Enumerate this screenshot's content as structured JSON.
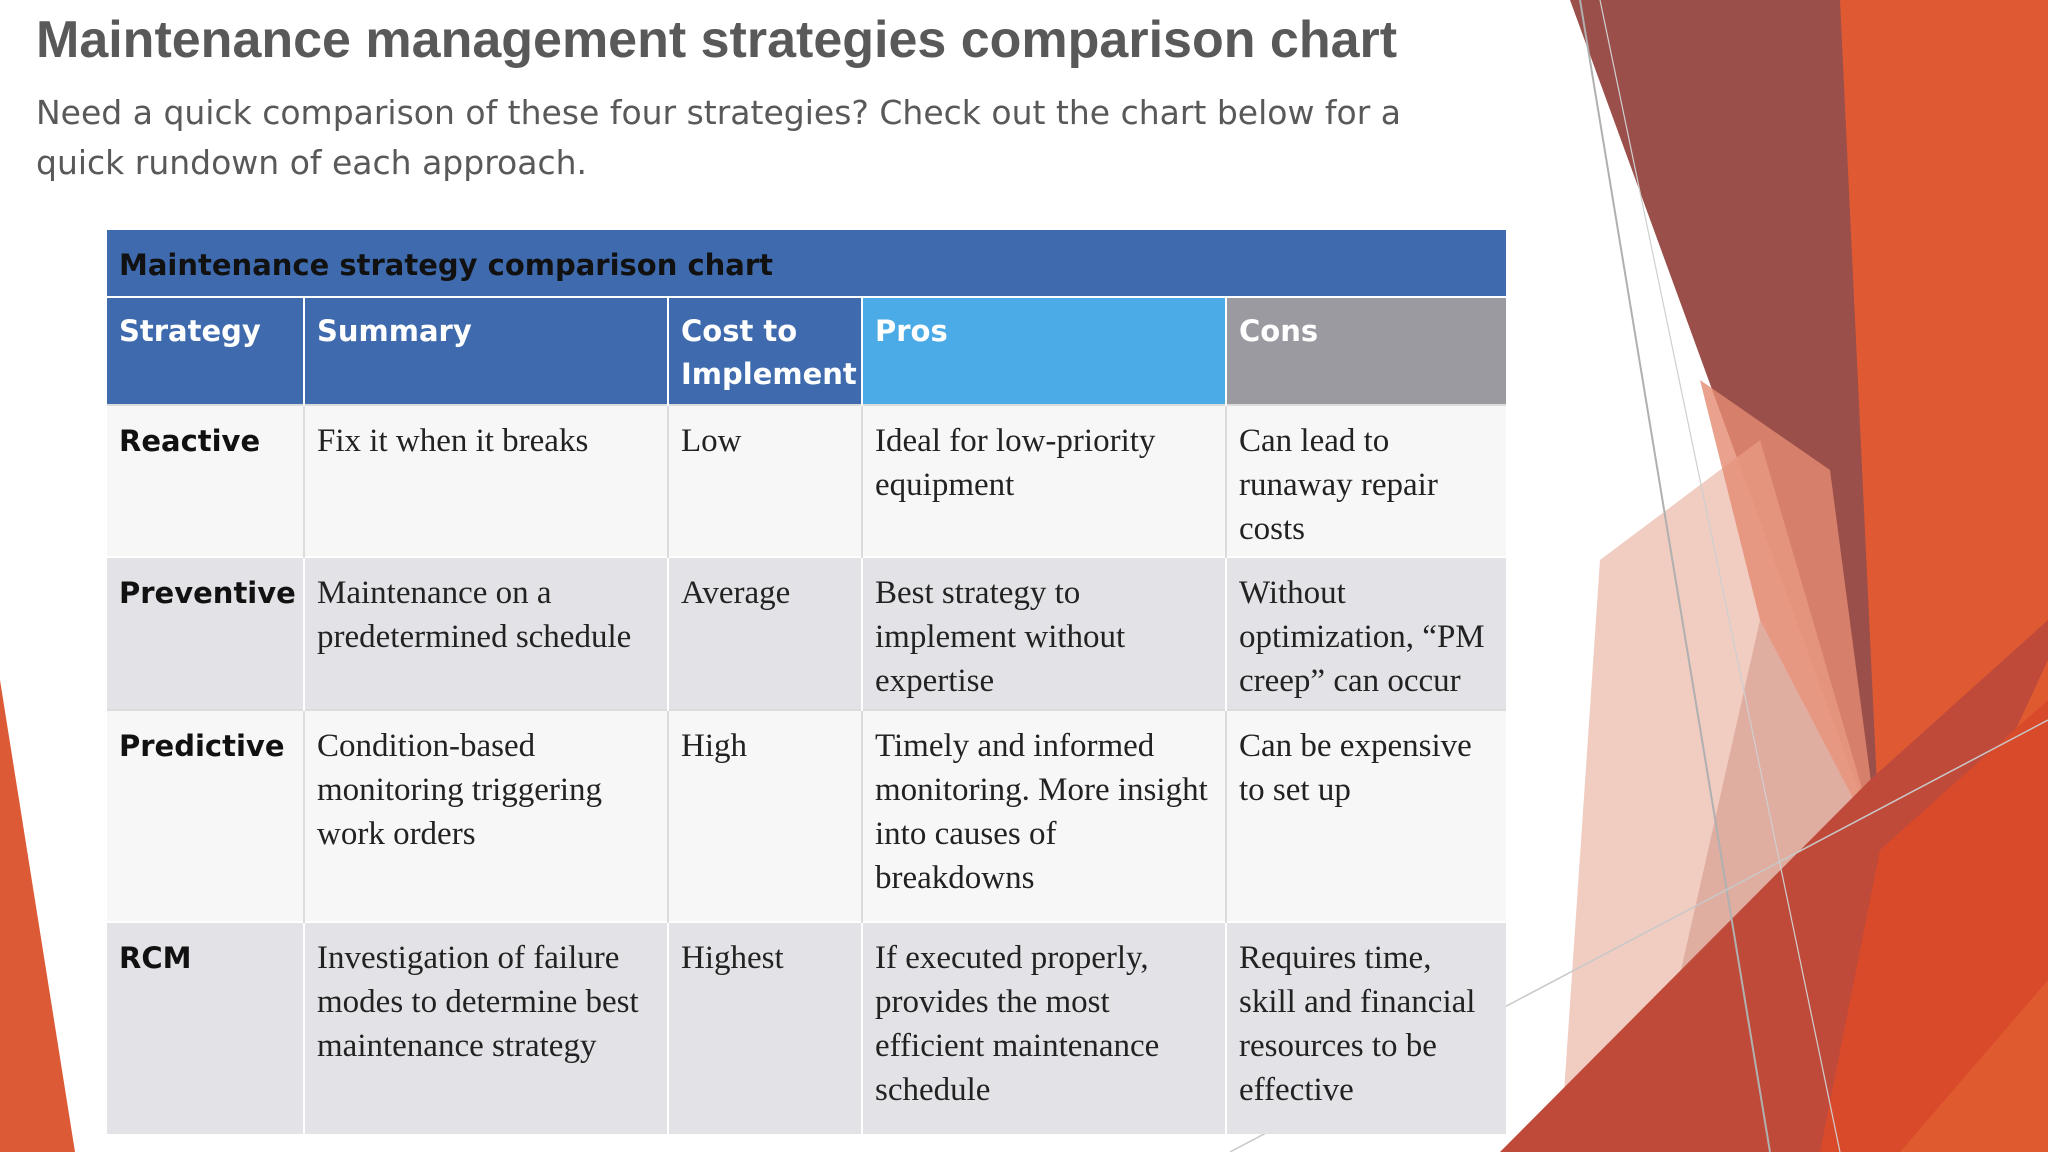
{
  "page": {
    "title": "Maintenance management strategies comparison chart",
    "subtitle": "Need a quick comparison of these four strategies? Check out the chart below for a quick rundown of each approach."
  },
  "table": {
    "caption": "Maintenance strategy comparison chart",
    "headers": [
      "Strategy",
      "Summary",
      "Cost to Implement",
      "Pros",
      "Cons"
    ],
    "rows": [
      {
        "strategy": "Reactive",
        "summary": "Fix it when it breaks",
        "cost": "Low",
        "pros": "Ideal for low-priority equipment",
        "cons": "Can lead to runaway repair costs"
      },
      {
        "strategy": "Preventive",
        "summary": "Maintenance on a predetermined schedule",
        "cost": "Average",
        "pros": "Best strategy to implement without expertise",
        "cons": "Without optimization, “PM creep” can occur"
      },
      {
        "strategy": "Predictive",
        "summary": "Condition-based monitoring triggering work orders",
        "cost": "High",
        "pros": "Timely and informed monitoring. More insight into causes of breakdowns",
        "cons": "Can be expensive to set up"
      },
      {
        "strategy": "RCM",
        "summary": "Investigation of failure modes to determine best maintenance strategy",
        "cost": "Highest",
        "pros": "If executed properly, provides the most efficient maintenance schedule",
        "cons": "Requires time, skill and financial resources to be effective"
      }
    ]
  },
  "colors": {
    "header_blue": "#3f6bae",
    "header_sky": "#4aabe6",
    "header_gray": "#9b9aa0",
    "accent_orange": "#e0552f",
    "accent_brown": "#9b4a45"
  }
}
